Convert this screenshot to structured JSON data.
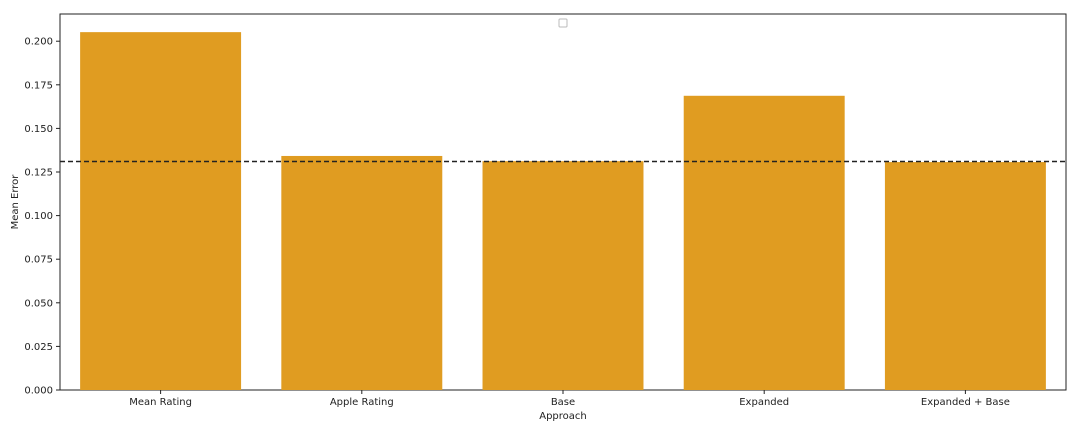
{
  "chart_data": {
    "type": "bar",
    "categories": [
      "Mean Rating",
      "Apple Rating",
      "Base",
      "Expanded",
      "Expanded + Base"
    ],
    "values": [
      0.2052,
      0.1342,
      0.1312,
      0.1687,
      0.1307
    ],
    "xlabel": "Approach",
    "ylabel": "Mean Error",
    "ylim": [
      0,
      0.2156
    ],
    "yticks": [
      0.0,
      0.025,
      0.05,
      0.075,
      0.1,
      0.125,
      0.15,
      0.175,
      0.2
    ],
    "ytick_labels": [
      "0.000",
      "0.025",
      "0.050",
      "0.075",
      "0.100",
      "0.125",
      "0.150",
      "0.175",
      "0.200"
    ],
    "reference_line": {
      "value": 0.131,
      "style": "dashed",
      "color": "#222222"
    },
    "bar_color": "#e09c21",
    "grid": false,
    "legend": {
      "placement": "top-center",
      "entries": []
    }
  }
}
